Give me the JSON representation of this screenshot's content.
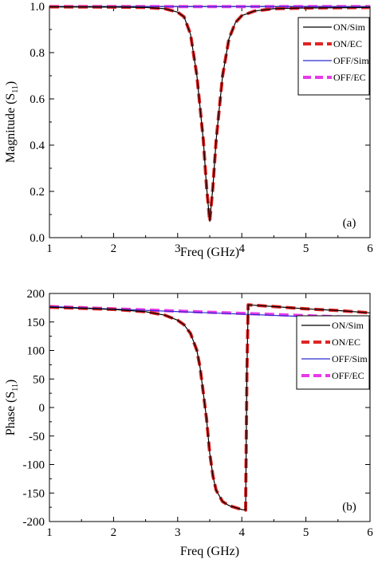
{
  "chart_data": [
    {
      "type": "line",
      "panel_label": "(a)",
      "xlabel": "Freq (GHz)",
      "ylabel": "Magnitude (S",
      "ylabel_sub": "11",
      "ylabel_close": ")",
      "xlim": [
        1,
        6
      ],
      "ylim": [
        0,
        1.0
      ],
      "xticks": [
        1,
        2,
        3,
        4,
        5,
        6
      ],
      "xtick_labels": [
        "1",
        "2",
        "3",
        "4",
        "5",
        "6"
      ],
      "yticks": [
        0,
        0.2,
        0.4,
        0.6,
        0.8,
        1.0
      ],
      "ytick_labels": [
        "0.0",
        "0.2",
        "0.4",
        "0.6",
        "0.8",
        "1.0"
      ],
      "grid": false,
      "legend_position": "top-right",
      "series": [
        {
          "name": "ON/Sim",
          "color": "#000000",
          "style": "solid",
          "x": [
            1.0,
            2.0,
            2.5,
            2.8,
            3.0,
            3.1,
            3.2,
            3.3,
            3.4,
            3.45,
            3.5,
            3.55,
            3.6,
            3.7,
            3.8,
            3.9,
            4.0,
            4.2,
            4.5,
            5.0,
            6.0
          ],
          "y": [
            0.998,
            0.997,
            0.995,
            0.99,
            0.975,
            0.955,
            0.88,
            0.7,
            0.42,
            0.22,
            0.07,
            0.22,
            0.42,
            0.7,
            0.86,
            0.93,
            0.96,
            0.98,
            0.99,
            0.993,
            0.995
          ]
        },
        {
          "name": "ON/EC",
          "color": "#e02424",
          "style": "dashed",
          "x": [
            1.0,
            2.0,
            2.5,
            2.8,
            3.0,
            3.1,
            3.2,
            3.3,
            3.4,
            3.45,
            3.5,
            3.55,
            3.6,
            3.7,
            3.8,
            3.9,
            4.0,
            4.2,
            4.5,
            5.0,
            6.0
          ],
          "y": [
            0.998,
            0.997,
            0.995,
            0.99,
            0.975,
            0.955,
            0.88,
            0.7,
            0.42,
            0.22,
            0.07,
            0.22,
            0.42,
            0.7,
            0.86,
            0.93,
            0.96,
            0.98,
            0.99,
            0.993,
            0.995
          ]
        },
        {
          "name": "OFF/Sim",
          "color": "#2a2ad0",
          "style": "solid",
          "x": [
            1,
            6
          ],
          "y": [
            0.999,
            0.999
          ]
        },
        {
          "name": "OFF/EC",
          "color": "#e83ae8",
          "style": "dashed",
          "x": [
            1,
            6
          ],
          "y": [
            0.999,
            0.999
          ]
        }
      ]
    },
    {
      "type": "line",
      "panel_label": "(b)",
      "xlabel": "Freq (GHz)",
      "ylabel": "Phase (S",
      "ylabel_sub": "11",
      "ylabel_close": ")",
      "xlim": [
        1,
        6
      ],
      "ylim": [
        -200,
        200
      ],
      "xticks": [
        1,
        2,
        3,
        4,
        5,
        6
      ],
      "xtick_labels": [
        "1",
        "2",
        "3",
        "4",
        "5",
        "6"
      ],
      "yticks": [
        -200,
        -150,
        -100,
        -50,
        0,
        50,
        100,
        150,
        200
      ],
      "ytick_labels": [
        "-200",
        "-150",
        "-100",
        "-50",
        "0",
        "50",
        "100",
        "150",
        "200"
      ],
      "grid": false,
      "legend_position": "right",
      "series": [
        {
          "name": "ON/Sim",
          "color": "#000000",
          "style": "solid",
          "x": [
            1.0,
            2.0,
            2.5,
            2.8,
            3.0,
            3.1,
            3.2,
            3.3,
            3.35,
            3.4,
            3.45,
            3.5,
            3.55,
            3.6,
            3.7,
            3.8,
            4.0,
            4.06,
            4.08,
            4.1,
            4.5,
            5.0,
            5.5,
            6.0
          ],
          "y": [
            176,
            172,
            168,
            162,
            153,
            145,
            130,
            100,
            70,
            25,
            -20,
            -80,
            -120,
            -145,
            -165,
            -172,
            -179,
            -180,
            60,
            180,
            177,
            173,
            170,
            166
          ]
        },
        {
          "name": "ON/EC",
          "color": "#e02424",
          "style": "dashed",
          "x": [
            1.0,
            2.0,
            2.5,
            2.8,
            3.0,
            3.1,
            3.2,
            3.3,
            3.35,
            3.4,
            3.45,
            3.5,
            3.55,
            3.6,
            3.7,
            3.8,
            4.0,
            4.06,
            4.08,
            4.1,
            4.5,
            5.0,
            5.5,
            6.0
          ],
          "y": [
            176,
            172,
            168,
            162,
            153,
            145,
            130,
            100,
            70,
            25,
            -20,
            -80,
            -120,
            -145,
            -165,
            -172,
            -179,
            -180,
            60,
            180,
            177,
            173,
            170,
            166
          ]
        },
        {
          "name": "OFF/Sim",
          "color": "#2a2ad0",
          "style": "solid",
          "x": [
            1,
            6
          ],
          "y": [
            177,
            155
          ]
        },
        {
          "name": "OFF/EC",
          "color": "#e83ae8",
          "style": "dashed",
          "x": [
            1,
            6
          ],
          "y": [
            177,
            157
          ]
        }
      ]
    }
  ]
}
